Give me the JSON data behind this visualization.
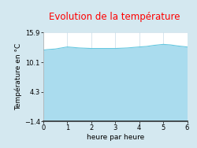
{
  "title": "Evolution de la température",
  "xlabel": "heure par heure",
  "ylabel": "Température en °C",
  "xlim": [
    0,
    6
  ],
  "ylim": [
    -1.4,
    15.9
  ],
  "yticks": [
    -1.4,
    4.3,
    10.1,
    15.9
  ],
  "xticks": [
    0,
    1,
    2,
    3,
    4,
    5,
    6
  ],
  "x": [
    0,
    0.2,
    0.5,
    1.0,
    1.5,
    2.0,
    2.5,
    3.0,
    3.5,
    4.0,
    4.3,
    4.6,
    5.0,
    5.3,
    5.6,
    6.0
  ],
  "y": [
    12.5,
    12.6,
    12.7,
    13.1,
    12.9,
    12.8,
    12.8,
    12.8,
    12.9,
    13.1,
    13.2,
    13.4,
    13.6,
    13.5,
    13.3,
    13.1
  ],
  "fill_color": "#aadcee",
  "line_color": "#66c8e0",
  "bg_color": "#d4e8f0",
  "plot_bg": "#ffffff",
  "title_color": "#ff0000",
  "grid_color": "#c8dce8",
  "title_fontsize": 8.5,
  "label_fontsize": 6.5,
  "tick_fontsize": 6
}
